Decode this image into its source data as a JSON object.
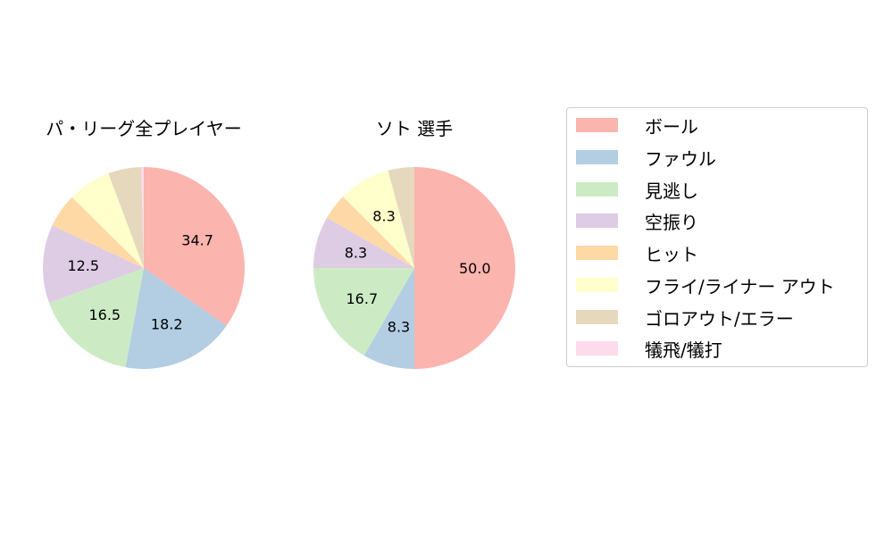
{
  "chart_data": [
    {
      "type": "pie",
      "title": "パ・リーグ全プレイヤー",
      "categories": [
        "ボール",
        "ファウル",
        "見逃し",
        "空振り",
        "ヒット",
        "フライ/ライナー アウト",
        "ゴロアウト/エラー",
        "犠飛/犠打"
      ],
      "values": [
        34.7,
        18.2,
        16.5,
        12.5,
        5.5,
        6.9,
        5.3,
        0.4
      ],
      "labels_shown": [
        "34.7",
        "18.2",
        "16.5",
        "12.5",
        "",
        "",
        "",
        ""
      ],
      "start_angle": 90,
      "direction": "clockwise"
    },
    {
      "type": "pie",
      "title": "ソト  選手",
      "categories": [
        "ボール",
        "ファウル",
        "見逃し",
        "空振り",
        "ヒット",
        "フライ/ライナー アウト",
        "ゴロアウト/エラー",
        "犠飛/犠打"
      ],
      "values": [
        50.0,
        8.3,
        16.7,
        8.3,
        4.2,
        8.3,
        4.2,
        0
      ],
      "labels_shown": [
        "50.0",
        "8.3",
        "16.7",
        "8.3",
        "",
        "8.3",
        "",
        ""
      ],
      "start_angle": 90,
      "direction": "clockwise"
    }
  ],
  "titles": {
    "left": "パ・リーグ全プレイヤー",
    "right": "ソト  選手"
  },
  "legend": {
    "position": "right",
    "items": [
      {
        "label": "ボール",
        "color": "#fbb4ae"
      },
      {
        "label": "ファウル",
        "color": "#b3cde3"
      },
      {
        "label": "見逃し",
        "color": "#ccebc5"
      },
      {
        "label": "空振り",
        "color": "#decbe4"
      },
      {
        "label": "ヒット",
        "color": "#fed9a6"
      },
      {
        "label": "フライ/ライナー アウト",
        "color": "#ffffcc"
      },
      {
        "label": "ゴロアウト/エラー",
        "color": "#e5d8bd"
      },
      {
        "label": "犠飛/犠打",
        "color": "#fddaec"
      }
    ]
  }
}
